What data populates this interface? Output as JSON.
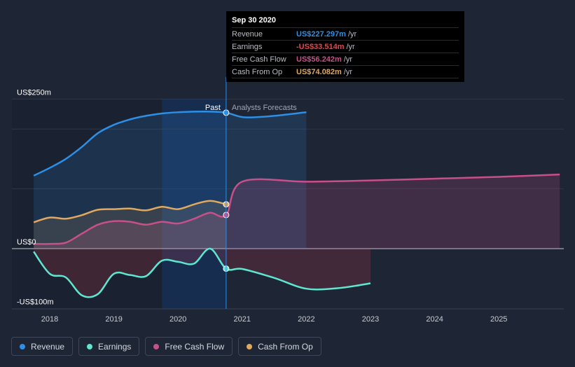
{
  "chart_data": {
    "type": "line",
    "x_ticks": [
      "2018",
      "2019",
      "2020",
      "2021",
      "2022",
      "2023",
      "2024",
      "2025"
    ],
    "y_ticks": [
      "US$250m",
      "US$0",
      "-US$100m"
    ],
    "ylim": [
      -100,
      250
    ],
    "xlim": [
      2017.5,
      2025.95
    ],
    "past_label": "Past",
    "forecast_label": "Analysts Forecasts",
    "series": [
      {
        "name": "Revenue",
        "color": "#2d8fe6",
        "points": [
          [
            2017.75,
            122
          ],
          [
            2018.0,
            135
          ],
          [
            2018.25,
            150
          ],
          [
            2018.5,
            170
          ],
          [
            2018.75,
            193
          ],
          [
            2019.0,
            207
          ],
          [
            2019.25,
            216
          ],
          [
            2019.5,
            222
          ],
          [
            2019.75,
            226
          ],
          [
            2020.0,
            228
          ],
          [
            2020.25,
            229
          ],
          [
            2020.5,
            229
          ],
          [
            2020.75,
            227.297
          ],
          [
            2021.0,
            220
          ],
          [
            2021.25,
            220
          ],
          [
            2021.5,
            222
          ],
          [
            2022.0,
            228
          ]
        ]
      },
      {
        "name": "Earnings",
        "color": "#5ee6d1",
        "points": [
          [
            2017.75,
            -5
          ],
          [
            2018.0,
            -42
          ],
          [
            2018.25,
            -48
          ],
          [
            2018.5,
            -78
          ],
          [
            2018.75,
            -76
          ],
          [
            2019.0,
            -42
          ],
          [
            2019.25,
            -44
          ],
          [
            2019.5,
            -46
          ],
          [
            2019.75,
            -20
          ],
          [
            2020.0,
            -22
          ],
          [
            2020.25,
            -25
          ],
          [
            2020.5,
            0
          ],
          [
            2020.75,
            -33.514
          ],
          [
            2021.0,
            -34
          ],
          [
            2021.5,
            -49
          ],
          [
            2022.0,
            -67
          ],
          [
            2022.5,
            -66
          ],
          [
            2023.0,
            -58
          ]
        ]
      },
      {
        "name": "Free Cash Flow",
        "color": "#c8508a",
        "points": [
          [
            2017.75,
            8
          ],
          [
            2018.0,
            8
          ],
          [
            2018.25,
            10
          ],
          [
            2018.5,
            25
          ],
          [
            2018.75,
            40
          ],
          [
            2019.0,
            46
          ],
          [
            2019.25,
            45
          ],
          [
            2019.5,
            40
          ],
          [
            2019.75,
            45
          ],
          [
            2020.0,
            42
          ],
          [
            2020.25,
            50
          ],
          [
            2020.5,
            60
          ],
          [
            2020.75,
            56.242
          ],
          [
            2021.0,
            112
          ],
          [
            2022.0,
            112
          ],
          [
            2023.0,
            114
          ],
          [
            2024.0,
            117
          ],
          [
            2025.0,
            120
          ],
          [
            2025.95,
            124
          ]
        ]
      },
      {
        "name": "Cash From Op",
        "color": "#e0a95e",
        "points": [
          [
            2017.75,
            44
          ],
          [
            2018.0,
            52
          ],
          [
            2018.25,
            50
          ],
          [
            2018.5,
            56
          ],
          [
            2018.75,
            65
          ],
          [
            2019.0,
            66
          ],
          [
            2019.25,
            67
          ],
          [
            2019.5,
            64
          ],
          [
            2019.75,
            70
          ],
          [
            2020.0,
            66
          ],
          [
            2020.25,
            74
          ],
          [
            2020.5,
            80
          ],
          [
            2020.75,
            74.082
          ]
        ]
      }
    ]
  },
  "tooltip": {
    "date": "Sep 30 2020",
    "rows": [
      {
        "label": "Revenue",
        "value": "US$227.297m",
        "unit": "/yr",
        "color": "#2d8fe6"
      },
      {
        "label": "Earnings",
        "value": "-US$33.514m",
        "unit": "/yr",
        "color": "#e0484d"
      },
      {
        "label": "Free Cash Flow",
        "value": "US$56.242m",
        "unit": "/yr",
        "color": "#c8508a"
      },
      {
        "label": "Cash From Op",
        "value": "US$74.082m",
        "unit": "/yr",
        "color": "#e0a95e"
      }
    ]
  },
  "legend": [
    {
      "label": "Revenue",
      "color": "#2d8fe6"
    },
    {
      "label": "Earnings",
      "color": "#5ee6d1"
    },
    {
      "label": "Free Cash Flow",
      "color": "#c8508a"
    },
    {
      "label": "Cash From Op",
      "color": "#e0a95e"
    }
  ]
}
